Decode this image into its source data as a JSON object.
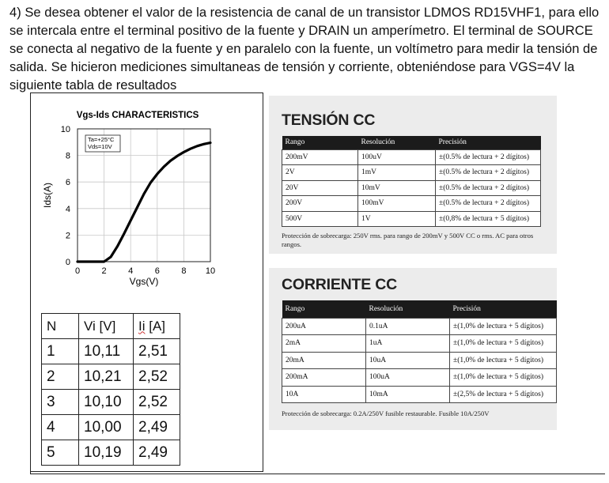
{
  "problem_text": "4) Se desea obtener el valor de la resistencia de canal de un transistor LDMOS RD15VHF1, para ello se intercala entre el terminal positivo de la fuente y DRAIN un amperímetro. El terminal de SOURCE se conecta al negativo de la fuente y en paralelo con la fuente, un voltímetro para medir la tensión de salida. Se hicieron mediciones simultaneas de tensión y corriente, obteniéndose para VGS=4V la siguiente tabla de resultados",
  "chart_data": {
    "type": "line",
    "title": "Vgs-Ids CHARACTERISTICS",
    "xlabel": "Vgs(V)",
    "ylabel": "Ids(A)",
    "xlim": [
      0,
      10
    ],
    "ylim": [
      0,
      10
    ],
    "xticks": [
      "0",
      "2",
      "4",
      "6",
      "8",
      "10"
    ],
    "yticks": [
      "0",
      "2",
      "4",
      "6",
      "8",
      "10"
    ],
    "grid": true,
    "legend": [
      "Ta=+25°C",
      "Vds=10V"
    ],
    "legend_position": "top-left",
    "x": [
      0,
      1,
      2,
      2.5,
      3,
      3.5,
      4,
      4.5,
      5,
      5.5,
      6,
      6.5,
      7,
      7.5,
      8,
      8.5,
      9,
      9.5,
      10
    ],
    "y": [
      0,
      0,
      0,
      0.35,
      1.15,
      2.1,
      3.1,
      4.1,
      5.1,
      5.95,
      6.6,
      7.15,
      7.6,
      7.95,
      8.25,
      8.5,
      8.7,
      8.85,
      8.95
    ]
  },
  "measurements": {
    "headers": [
      "N",
      "Vi [V]",
      "Ii",
      "[A]"
    ],
    "rows": [
      {
        "n": "1",
        "vi": "10,11",
        "ii": "2,51"
      },
      {
        "n": "2",
        "vi": "10,21",
        "ii": "2,52"
      },
      {
        "n": "3",
        "vi": "10,10",
        "ii": "2,52"
      },
      {
        "n": "4",
        "vi": "10,00",
        "ii": "2,49"
      },
      {
        "n": "5",
        "vi": "10,19",
        "ii": "2,49"
      }
    ]
  },
  "tension_cc": {
    "title": "TENSIÓN CC",
    "headers": [
      "Rango",
      "Resolución",
      "Precisión"
    ],
    "rows": [
      {
        "rango": "200mV",
        "res": "100uV",
        "prec": "±(0.5% de lectura + 2 dígitos)"
      },
      {
        "rango": "2V",
        "res": "1mV",
        "prec": "±(0.5% de lectura + 2 dígitos)"
      },
      {
        "rango": "20V",
        "res": "10mV",
        "prec": "±(0.5% de lectura + 2 dígitos)"
      },
      {
        "rango": "200V",
        "res": "100mV",
        "prec": "±(0.5% de lectura + 2 dígitos)"
      },
      {
        "rango": "500V",
        "res": "1V",
        "prec": "±(0,8% de lectura + 5 dígitos)"
      }
    ],
    "note": "Protección de sobrecarga: 250V rms. para rango de 200mV y 500V CC o rms. AC para otros rangos."
  },
  "corriente_cc": {
    "title": "CORRIENTE CC",
    "headers": [
      "Rango",
      "Resolución",
      "Precisión"
    ],
    "rows": [
      {
        "rango": "200uA",
        "res": "0.1uA",
        "prec": "±(1,0% de lectura + 5 dígitos)"
      },
      {
        "rango": "2mA",
        "res": "1uA",
        "prec": "±(1,0% de lectura + 5 dígitos)"
      },
      {
        "rango": "20mA",
        "res": "10uA",
        "prec": "±(1,0% de lectura + 5 dígitos)"
      },
      {
        "rango": "200mA",
        "res": "100uA",
        "prec": "±(1,0% de lectura + 5 dígitos)"
      },
      {
        "rango": "10A",
        "res": "10mA",
        "prec": "±(2,5% de lectura + 5 dígitos)"
      }
    ],
    "note": "Protección de sobrecarga: 0.2A/250V fusible restaurable. Fusible 10A/250V"
  }
}
